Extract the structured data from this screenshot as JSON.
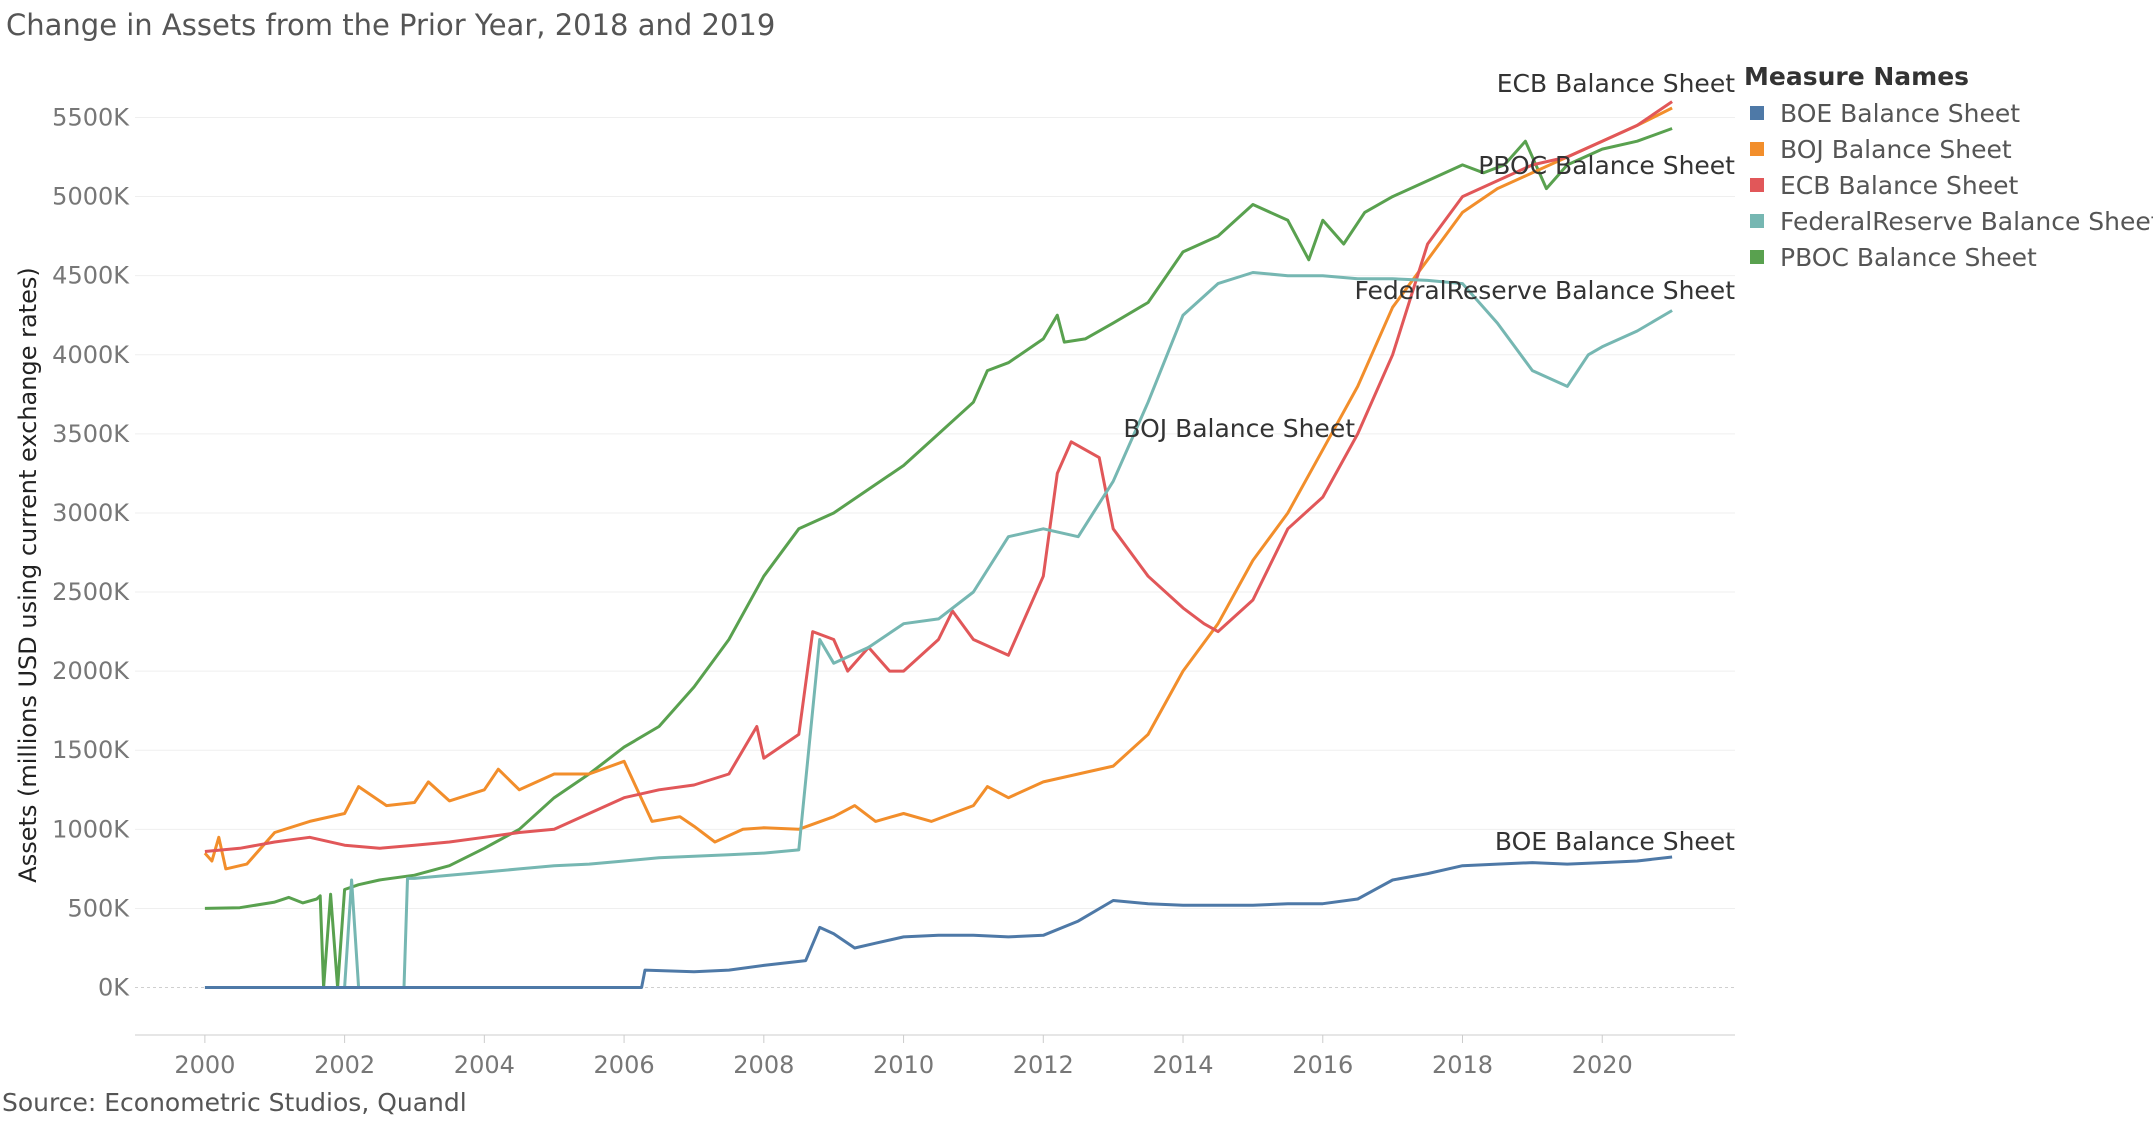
{
  "title": "Change in Assets from the Prior Year, 2018 and 2019",
  "source": "Source: Econometric Studios, Quandl",
  "legend": {
    "title": "Measure Names",
    "items": [
      {
        "label": "BOE Balance Sheet",
        "color": "#4e79a7"
      },
      {
        "label": "BOJ Balance Sheet",
        "color": "#f28e2b"
      },
      {
        "label": "ECB Balance Sheet",
        "color": "#e15759"
      },
      {
        "label": "FederalReserve Balance Sheet",
        "color": "#76b7b2"
      },
      {
        "label": "PBOC Balance Sheet",
        "color": "#59a14f"
      }
    ]
  },
  "chart_data": {
    "type": "line",
    "title": "Change in Assets from the Prior Year, 2018 and 2019",
    "ylabel": "Assets (millions USD using current exchange rates)",
    "xlabel": "",
    "xlim": [
      1999,
      2021.9
    ],
    "ylim": [
      -300,
      5800
    ],
    "x_ticks": [
      2000,
      2002,
      2004,
      2006,
      2008,
      2010,
      2012,
      2014,
      2016,
      2018,
      2020
    ],
    "x_tick_labels": [
      "2000",
      "2002",
      "2004",
      "2006",
      "2008",
      "2010",
      "2012",
      "2014",
      "2016",
      "2018",
      "2020"
    ],
    "y_ticks": [
      0,
      500,
      1000,
      1500,
      2000,
      2500,
      3000,
      3500,
      4000,
      4500,
      5000,
      5500
    ],
    "y_tick_labels": [
      "0K",
      "500K",
      "1000K",
      "1500K",
      "2000K",
      "2500K",
      "3000K",
      "3500K",
      "4000K",
      "4500K",
      "5000K",
      "5500K"
    ],
    "grid": "horizontal",
    "legend_position": "right",
    "series": [
      {
        "name": "PBOC Balance Sheet",
        "color": "#59a14f",
        "label": "PBOC Balance Sheet",
        "points": [
          [
            2000,
            500
          ],
          [
            2000.5,
            505
          ],
          [
            2001,
            540
          ],
          [
            2001.2,
            570
          ],
          [
            2001.4,
            535
          ],
          [
            2001.6,
            560
          ],
          [
            2001.65,
            580
          ],
          [
            2001.7,
            0
          ],
          [
            2001.8,
            590
          ],
          [
            2001.9,
            0
          ],
          [
            2002.0,
            620
          ],
          [
            2002.2,
            650
          ],
          [
            2002.5,
            680
          ],
          [
            2003,
            710
          ],
          [
            2003.5,
            770
          ],
          [
            2004,
            880
          ],
          [
            2004.5,
            1000
          ],
          [
            2005,
            1200
          ],
          [
            2005.5,
            1350
          ],
          [
            2006,
            1520
          ],
          [
            2006.5,
            1650
          ],
          [
            2007,
            1900
          ],
          [
            2007.5,
            2200
          ],
          [
            2008,
            2600
          ],
          [
            2008.5,
            2900
          ],
          [
            2009,
            3000
          ],
          [
            2009.5,
            3150
          ],
          [
            2010,
            3300
          ],
          [
            2010.5,
            3500
          ],
          [
            2011,
            3700
          ],
          [
            2011.2,
            3900
          ],
          [
            2011.5,
            3950
          ],
          [
            2012,
            4100
          ],
          [
            2012.2,
            4250
          ],
          [
            2012.3,
            4080
          ],
          [
            2012.6,
            4100
          ],
          [
            2013,
            4200
          ],
          [
            2013.5,
            4330
          ],
          [
            2014,
            4650
          ],
          [
            2014.5,
            4750
          ],
          [
            2015,
            4950
          ],
          [
            2015.5,
            4850
          ],
          [
            2015.8,
            4600
          ],
          [
            2016,
            4850
          ],
          [
            2016.3,
            4700
          ],
          [
            2016.6,
            4900
          ],
          [
            2017,
            5000
          ],
          [
            2017.5,
            5100
          ],
          [
            2018,
            5200
          ],
          [
            2018.3,
            5150
          ],
          [
            2018.6,
            5200
          ],
          [
            2018.9,
            5350
          ],
          [
            2019.2,
            5050
          ],
          [
            2019.5,
            5200
          ],
          [
            2020,
            5300
          ],
          [
            2020.5,
            5350
          ],
          [
            2021,
            5430
          ]
        ]
      },
      {
        "name": "BOJ Balance Sheet",
        "color": "#f28e2b",
        "label": "BOJ Balance Sheet",
        "points": [
          [
            2000,
            850
          ],
          [
            2000.1,
            800
          ],
          [
            2000.2,
            950
          ],
          [
            2000.3,
            750
          ],
          [
            2000.6,
            780
          ],
          [
            2001,
            980
          ],
          [
            2001.5,
            1050
          ],
          [
            2002,
            1100
          ],
          [
            2002.2,
            1270
          ],
          [
            2002.6,
            1150
          ],
          [
            2003,
            1170
          ],
          [
            2003.2,
            1300
          ],
          [
            2003.5,
            1180
          ],
          [
            2004,
            1250
          ],
          [
            2004.2,
            1380
          ],
          [
            2004.5,
            1250
          ],
          [
            2005,
            1350
          ],
          [
            2005.5,
            1350
          ],
          [
            2006,
            1430
          ],
          [
            2006.4,
            1050
          ],
          [
            2006.8,
            1080
          ],
          [
            2007,
            1020
          ],
          [
            2007.3,
            920
          ],
          [
            2007.7,
            1000
          ],
          [
            2008,
            1010
          ],
          [
            2008.5,
            1000
          ],
          [
            2009,
            1080
          ],
          [
            2009.3,
            1150
          ],
          [
            2009.6,
            1050
          ],
          [
            2010,
            1100
          ],
          [
            2010.4,
            1050
          ],
          [
            2011,
            1150
          ],
          [
            2011.2,
            1270
          ],
          [
            2011.5,
            1200
          ],
          [
            2012,
            1300
          ],
          [
            2012.5,
            1350
          ],
          [
            2013,
            1400
          ],
          [
            2013.5,
            1600
          ],
          [
            2014,
            2000
          ],
          [
            2014.5,
            2300
          ],
          [
            2015,
            2700
          ],
          [
            2015.5,
            3000
          ],
          [
            2016,
            3400
          ],
          [
            2016.5,
            3800
          ],
          [
            2017,
            4300
          ],
          [
            2017.5,
            4600
          ],
          [
            2018,
            4900
          ],
          [
            2018.5,
            5050
          ],
          [
            2019,
            5150
          ],
          [
            2019.5,
            5250
          ],
          [
            2020,
            5350
          ],
          [
            2020.5,
            5450
          ],
          [
            2021,
            5560
          ]
        ]
      },
      {
        "name": "ECB Balance Sheet",
        "color": "#e15759",
        "label": "ECB Balance Sheet",
        "points": [
          [
            2000,
            860
          ],
          [
            2000.5,
            880
          ],
          [
            2001,
            920
          ],
          [
            2001.5,
            950
          ],
          [
            2002,
            900
          ],
          [
            2002.5,
            880
          ],
          [
            2003,
            900
          ],
          [
            2003.5,
            920
          ],
          [
            2004,
            950
          ],
          [
            2004.5,
            980
          ],
          [
            2005,
            1000
          ],
          [
            2005.5,
            1100
          ],
          [
            2006,
            1200
          ],
          [
            2006.5,
            1250
          ],
          [
            2007,
            1280
          ],
          [
            2007.5,
            1350
          ],
          [
            2007.9,
            1650
          ],
          [
            2008,
            1450
          ],
          [
            2008.5,
            1600
          ],
          [
            2008.7,
            2250
          ],
          [
            2009,
            2200
          ],
          [
            2009.2,
            2000
          ],
          [
            2009.5,
            2150
          ],
          [
            2009.8,
            2000
          ],
          [
            2010,
            2000
          ],
          [
            2010.5,
            2200
          ],
          [
            2010.7,
            2380
          ],
          [
            2011,
            2200
          ],
          [
            2011.5,
            2100
          ],
          [
            2012,
            2600
          ],
          [
            2012.2,
            3250
          ],
          [
            2012.4,
            3450
          ],
          [
            2012.8,
            3350
          ],
          [
            2013,
            2900
          ],
          [
            2013.5,
            2600
          ],
          [
            2014,
            2400
          ],
          [
            2014.3,
            2300
          ],
          [
            2014.5,
            2250
          ],
          [
            2015,
            2450
          ],
          [
            2015.5,
            2900
          ],
          [
            2016,
            3100
          ],
          [
            2016.5,
            3500
          ],
          [
            2017,
            4000
          ],
          [
            2017.5,
            4700
          ],
          [
            2018,
            5000
          ],
          [
            2018.5,
            5100
          ],
          [
            2019,
            5200
          ],
          [
            2019.5,
            5250
          ],
          [
            2020,
            5350
          ],
          [
            2020.5,
            5450
          ],
          [
            2021,
            5600
          ]
        ]
      },
      {
        "name": "FederalReserve Balance Sheet",
        "color": "#76b7b2",
        "label": "FederalReserve Balance Sheet",
        "points": [
          [
            2002,
            0
          ],
          [
            2002.1,
            680
          ],
          [
            2002.2,
            0
          ],
          [
            2002.85,
            0
          ],
          [
            2002.9,
            690
          ],
          [
            2003,
            690
          ],
          [
            2003.5,
            710
          ],
          [
            2004,
            730
          ],
          [
            2004.5,
            750
          ],
          [
            2005,
            770
          ],
          [
            2005.5,
            780
          ],
          [
            2006,
            800
          ],
          [
            2006.5,
            820
          ],
          [
            2007,
            830
          ],
          [
            2007.5,
            840
          ],
          [
            2008,
            850
          ],
          [
            2008.5,
            870
          ],
          [
            2008.8,
            2200
          ],
          [
            2009,
            2050
          ],
          [
            2009.5,
            2150
          ],
          [
            2010,
            2300
          ],
          [
            2010.5,
            2330
          ],
          [
            2011,
            2500
          ],
          [
            2011.5,
            2850
          ],
          [
            2012,
            2900
          ],
          [
            2012.5,
            2850
          ],
          [
            2013,
            3200
          ],
          [
            2013.5,
            3700
          ],
          [
            2014,
            4250
          ],
          [
            2014.5,
            4450
          ],
          [
            2015,
            4520
          ],
          [
            2015.5,
            4500
          ],
          [
            2016,
            4500
          ],
          [
            2016.5,
            4480
          ],
          [
            2017,
            4480
          ],
          [
            2017.5,
            4470
          ],
          [
            2018,
            4450
          ],
          [
            2018.5,
            4200
          ],
          [
            2019,
            3900
          ],
          [
            2019.5,
            3800
          ],
          [
            2019.8,
            4000
          ],
          [
            2020,
            4050
          ],
          [
            2020.5,
            4150
          ],
          [
            2021,
            4280
          ]
        ]
      },
      {
        "name": "BOE Balance Sheet",
        "color": "#4e79a7",
        "label": "BOE Balance Sheet",
        "points": [
          [
            2000,
            0
          ],
          [
            2002,
            0
          ],
          [
            2004,
            0
          ],
          [
            2006.25,
            0
          ],
          [
            2006.3,
            110
          ],
          [
            2007,
            100
          ],
          [
            2007.5,
            110
          ],
          [
            2008,
            140
          ],
          [
            2008.6,
            170
          ],
          [
            2008.8,
            380
          ],
          [
            2009,
            340
          ],
          [
            2009.3,
            250
          ],
          [
            2009.6,
            280
          ],
          [
            2010,
            320
          ],
          [
            2010.5,
            330
          ],
          [
            2011,
            330
          ],
          [
            2011.5,
            320
          ],
          [
            2012,
            330
          ],
          [
            2012.5,
            420
          ],
          [
            2013,
            550
          ],
          [
            2013.5,
            530
          ],
          [
            2014,
            520
          ],
          [
            2014.5,
            520
          ],
          [
            2015,
            520
          ],
          [
            2015.5,
            530
          ],
          [
            2016,
            530
          ],
          [
            2016.5,
            560
          ],
          [
            2017,
            680
          ],
          [
            2017.5,
            720
          ],
          [
            2018,
            770
          ],
          [
            2018.5,
            780
          ],
          [
            2019,
            790
          ],
          [
            2019.5,
            780
          ],
          [
            2020,
            790
          ],
          [
            2020.5,
            800
          ],
          [
            2021,
            825
          ]
        ]
      }
    ]
  }
}
